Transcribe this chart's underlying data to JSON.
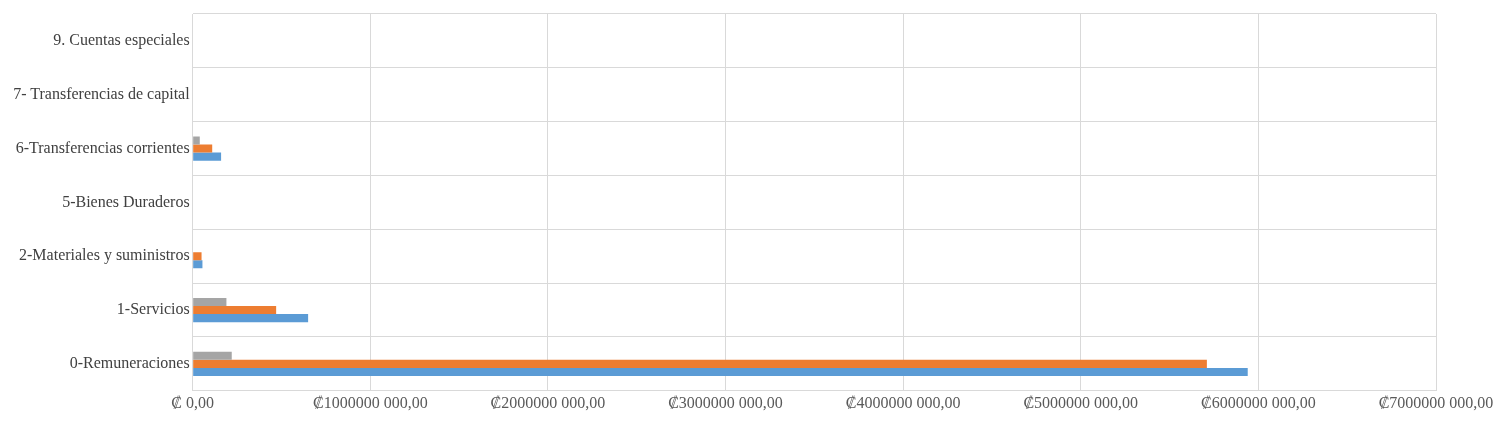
{
  "chart_data": {
    "type": "bar",
    "orientation": "horizontal",
    "categories": [
      "9. Cuentas especiales",
      "7- Transferencias de capital",
      "6-Transferencias corrientes",
      "5-Bienes Duraderos",
      "2-Materiales y suministros",
      "1-Servicios",
      "0-Remuneraciones"
    ],
    "series": [
      {
        "color": "#a5a5a5",
        "values": [
          0,
          0,
          40000000,
          0,
          0,
          190000000,
          220000000
        ]
      },
      {
        "color": "#ed7d31",
        "values": [
          0,
          0,
          110000000,
          0,
          50000000,
          470000000,
          5710000000
        ]
      },
      {
        "color": "#5b9bd5",
        "values": [
          0,
          0,
          160000000,
          0,
          55000000,
          650000000,
          5940000000
        ]
      }
    ],
    "xlim": [
      0,
      7000000000
    ],
    "xticks": [
      {
        "value": 0,
        "label": "₡ 0,00"
      },
      {
        "value": 1000000000,
        "label": "₡1000000 000,00"
      },
      {
        "value": 2000000000,
        "label": "₡2000000 000,00"
      },
      {
        "value": 3000000000,
        "label": "₡3000000 000,00"
      },
      {
        "value": 4000000000,
        "label": "₡4000000 000,00"
      },
      {
        "value": 5000000000,
        "label": "₡5000000 000,00"
      },
      {
        "value": 6000000000,
        "label": "₡6000000 000,00"
      },
      {
        "value": 7000000000,
        "label": "₡7000000 000,00"
      }
    ],
    "grid": true,
    "legend": false
  }
}
